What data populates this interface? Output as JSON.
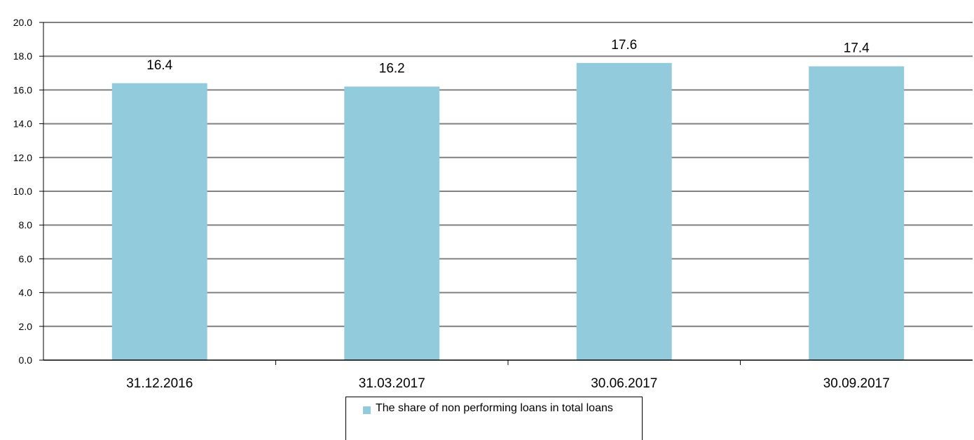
{
  "chart_data": {
    "type": "bar",
    "categories": [
      "31.12.2016",
      "31.03.2017",
      "30.06.2017",
      "30.09.2017"
    ],
    "series": [
      {
        "name": "The share of non performing loans in total loans",
        "values": [
          16.4,
          16.2,
          17.6,
          17.4
        ],
        "labels": [
          "16.4",
          "16.2",
          "17.6",
          "17.4"
        ],
        "color": "#92cbdb"
      }
    ],
    "ylim": [
      0,
      20
    ],
    "yticks": [
      "0.0",
      "2.0",
      "4.0",
      "6.0",
      "8.0",
      "10.0",
      "12.0",
      "14.0",
      "16.0",
      "18.0",
      "20.0"
    ],
    "grid": true,
    "legend_position": "bottom-center",
    "title": "",
    "xlabel": "",
    "ylabel": ""
  },
  "colors": {
    "bar": "#92cbdb",
    "grid": "#808080",
    "axis": "#000000"
  }
}
